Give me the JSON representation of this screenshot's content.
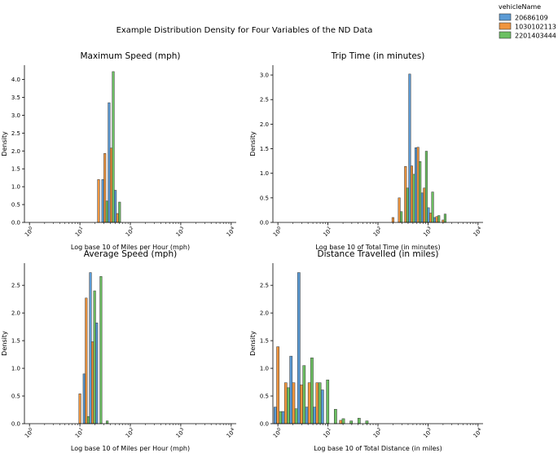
{
  "chart_data": {
    "type": "bar",
    "suptitle": "Example Distribution Density for Four Variables of the ND Data",
    "legend": {
      "title": "vehicleName",
      "placement": "top-right",
      "entries": [
        {
          "name": "20686109",
          "color": "#5b9bd5"
        },
        {
          "name": "1030102113",
          "color": "#f0953e"
        },
        {
          "name": "2201403444",
          "color": "#6cc062"
        }
      ]
    },
    "bar_edge_color": "#333333",
    "panels": [
      {
        "id": "max-speed",
        "title": "Maximum Speed (mph)",
        "xlabel": "Log base 10 of Miles per Hour (mph)",
        "ylabel": "Density",
        "xscale": "log10",
        "xlim_log": [
          -0.1,
          4.1
        ],
        "xticks_log": [
          0,
          1,
          2,
          3,
          4
        ],
        "ylim": [
          0,
          4.4
        ],
        "yticks": [
          "0.0",
          "0.5",
          "1.0",
          "1.5",
          "2.0",
          "2.5",
          "3.0",
          "3.5",
          "4.0"
        ],
        "bin_width_log": 0.1245,
        "bins": [
          {
            "x_log": 1.37,
            "values": [
              0.0,
              1.2,
              0.0
            ]
          },
          {
            "x_log": 1.495,
            "values": [
              1.2,
              1.93,
              0.6
            ]
          },
          {
            "x_log": 1.62,
            "values": [
              3.35,
              2.08,
              4.22
            ]
          },
          {
            "x_log": 1.745,
            "values": [
              0.9,
              0.25,
              0.57
            ]
          }
        ]
      },
      {
        "id": "trip-time",
        "title": "Trip Time (in minutes)",
        "xlabel": "Log base 10 of Total Time (in minutes)",
        "ylabel": "Density",
        "xscale": "log10",
        "xlim_log": [
          -0.1,
          4.1
        ],
        "xticks_log": [
          0,
          1,
          2,
          3,
          4
        ],
        "ylim": [
          0,
          3.2
        ],
        "yticks": [
          "0.0",
          "0.5",
          "1.0",
          "1.5",
          "2.0",
          "2.5",
          "3.0"
        ],
        "bin_width_log": 0.125,
        "bins": [
          {
            "x_log": 2.3,
            "values": [
              0.0,
              0.1,
              0.0
            ]
          },
          {
            "x_log": 2.425,
            "values": [
              0.0,
              0.5,
              0.22
            ]
          },
          {
            "x_log": 2.55,
            "values": [
              0.0,
              1.14,
              0.7
            ]
          },
          {
            "x_log": 2.675,
            "values": [
              3.02,
              1.15,
              0.98
            ]
          },
          {
            "x_log": 2.8,
            "values": [
              1.52,
              1.53,
              1.24
            ]
          },
          {
            "x_log": 2.925,
            "values": [
              0.6,
              0.7,
              1.45
            ]
          },
          {
            "x_log": 3.05,
            "values": [
              0.3,
              0.19,
              0.62
            ]
          },
          {
            "x_log": 3.175,
            "values": [
              0.1,
              0.12,
              0.14
            ]
          },
          {
            "x_log": 3.3,
            "values": [
              0.0,
              0.05,
              0.17
            ]
          }
        ]
      },
      {
        "id": "avg-speed",
        "title": "Average Speed (mph)",
        "xlabel": "Log base 10 of Miles per Hour (mph)",
        "ylabel": "Density",
        "xscale": "log10",
        "xlim_log": [
          -0.1,
          4.1
        ],
        "xticks_log": [
          0,
          1,
          2,
          3,
          4
        ],
        "ylim": [
          0,
          2.9
        ],
        "yticks": [
          "0.0",
          "0.5",
          "1.0",
          "1.5",
          "2.0",
          "2.5"
        ],
        "bin_width_log": 0.125,
        "bins": [
          {
            "x_log": 1.0,
            "values": [
              0.0,
              0.54,
              0.0
            ]
          },
          {
            "x_log": 1.125,
            "values": [
              0.9,
              2.27,
              0.13
            ]
          },
          {
            "x_log": 1.25,
            "values": [
              2.73,
              1.48,
              2.4
            ]
          },
          {
            "x_log": 1.375,
            "values": [
              1.82,
              0.0,
              2.66
            ]
          },
          {
            "x_log": 1.5,
            "values": [
              0.0,
              0.0,
              0.05
            ]
          }
        ]
      },
      {
        "id": "distance",
        "title": "Distance Travelled (in miles)",
        "xlabel": "Log base 10 of Total Distance (in miles)",
        "ylabel": "Density",
        "xscale": "log10",
        "xlim_log": [
          -0.1,
          4.1
        ],
        "xticks_log": [
          0,
          1,
          2,
          3,
          4
        ],
        "ylim": [
          0,
          2.9
        ],
        "yticks": [
          "0.0",
          "0.5",
          "1.0",
          "1.5",
          "2.0",
          "2.5"
        ],
        "bin_width_log": 0.157,
        "bins": [
          {
            "x_log": 0.0,
            "values": [
              0.3,
              1.39,
              0.22
            ]
          },
          {
            "x_log": 0.157,
            "values": [
              0.22,
              0.74,
              0.65
            ]
          },
          {
            "x_log": 0.314,
            "values": [
              1.22,
              0.74,
              0.27
            ]
          },
          {
            "x_log": 0.471,
            "values": [
              2.73,
              0.7,
              1.05
            ]
          },
          {
            "x_log": 0.628,
            "values": [
              0.3,
              0.74,
              1.19
            ]
          },
          {
            "x_log": 0.785,
            "values": [
              0.3,
              0.74,
              0.74
            ]
          },
          {
            "x_log": 0.942,
            "values": [
              0.61,
              0.0,
              0.79
            ]
          },
          {
            "x_log": 1.099,
            "values": [
              0.0,
              0.0,
              0.26
            ]
          },
          {
            "x_log": 1.256,
            "values": [
              0.0,
              0.06,
              0.09
            ]
          },
          {
            "x_log": 1.413,
            "values": [
              0.0,
              0.0,
              0.05
            ]
          },
          {
            "x_log": 1.57,
            "values": [
              0.0,
              0.0,
              0.1
            ]
          },
          {
            "x_log": 1.727,
            "values": [
              0.0,
              0.0,
              0.05
            ]
          }
        ]
      }
    ]
  }
}
